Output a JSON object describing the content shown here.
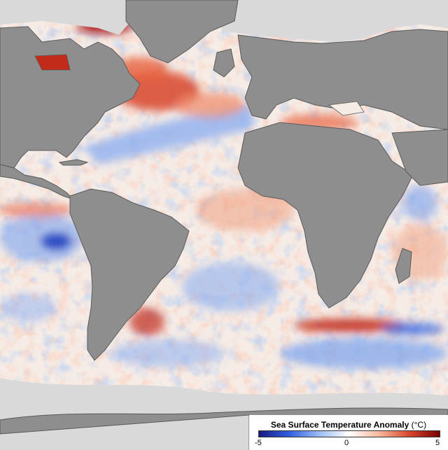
{
  "legend": {
    "title": "Sea Surface Temperature Anomaly",
    "unit": "(°C)",
    "min_label": "-5",
    "mid_label": "0",
    "max_label": "5",
    "colors": [
      "#1a1a80",
      "#2f5fe0",
      "#9bbcf5",
      "#ffffff",
      "#f7b79a",
      "#d8452c",
      "#7a0000"
    ]
  },
  "colors": {
    "land": "#8e8e8e",
    "land_outline": "#5a5a5a",
    "ice": "#ffffff",
    "warm": "#e8623f",
    "warm_strong": "#a80f0f",
    "cool": "#7aa2ee",
    "cool_strong": "#1f3fbf",
    "neutral_ocean": "#f6ece6"
  }
}
